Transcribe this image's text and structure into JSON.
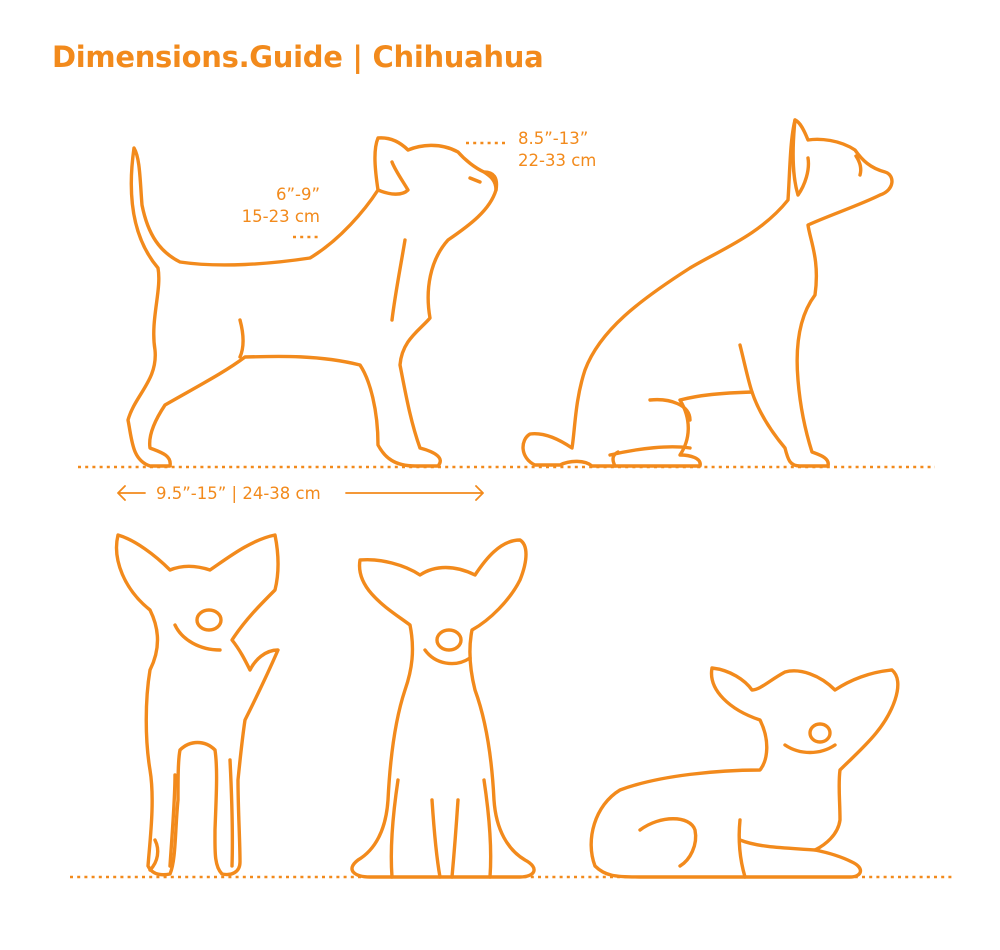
{
  "header": {
    "title": "Dimensions.Guide | Chihuahua"
  },
  "dimensions": {
    "height_head": {
      "imperial": "8.5”-13”",
      "metric": "22-33 cm"
    },
    "height_back": {
      "imperial": "6”-9”",
      "metric": "15-23 cm"
    },
    "length": {
      "label": "9.5”-15” | 24-38 cm"
    }
  },
  "colors": {
    "accent": "#f28a1c",
    "background": "#ffffff"
  }
}
